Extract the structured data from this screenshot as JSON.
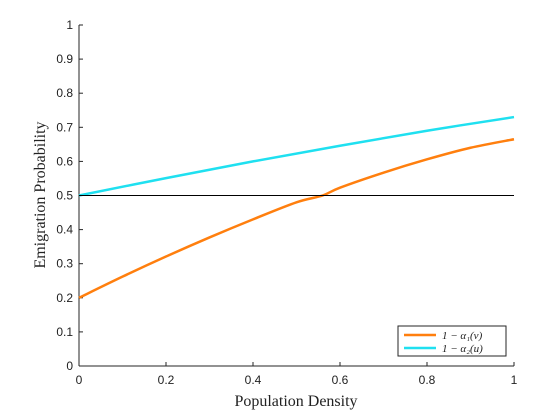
{
  "chart_data": {
    "type": "line",
    "xlabel": "Population Density",
    "ylabel": "Emigration Probability",
    "xlim": [
      0,
      1
    ],
    "ylim": [
      0,
      1
    ],
    "xticks": [
      "0",
      "0.2",
      "0.4",
      "0.6",
      "0.8",
      "1"
    ],
    "xtick_values": [
      0,
      0.2,
      0.4,
      0.6,
      0.8,
      1
    ],
    "yticks": [
      "0",
      "0.1",
      "0.2",
      "0.3",
      "0.4",
      "0.5",
      "0.6",
      "0.7",
      "0.8",
      "0.9",
      "1"
    ],
    "ytick_values": [
      0,
      0.1,
      0.2,
      0.3,
      0.4,
      0.5,
      0.6,
      0.7,
      0.8,
      0.9,
      1
    ],
    "grid": false,
    "legend_position": "bottom-right",
    "series": [
      {
        "name": "1 − α₁(v)",
        "color": "#ff7f0e",
        "x": [
          0,
          0.1,
          0.2,
          0.3,
          0.4,
          0.5,
          0.56,
          0.6,
          0.7,
          0.8,
          0.9,
          1.0
        ],
        "y": [
          0.2,
          0.262,
          0.321,
          0.377,
          0.43,
          0.48,
          0.5,
          0.523,
          0.567,
          0.606,
          0.64,
          0.665
        ]
      },
      {
        "name": "1 − α₂(u)",
        "color": "#1fe0f0",
        "x": [
          0,
          0.2,
          0.4,
          0.6,
          0.8,
          1.0
        ],
        "y": [
          0.5,
          0.551,
          0.6,
          0.646,
          0.69,
          0.73
        ]
      },
      {
        "color": "#000000",
        "x": [
          0,
          1
        ],
        "y": [
          0.5,
          0.5
        ]
      }
    ]
  }
}
